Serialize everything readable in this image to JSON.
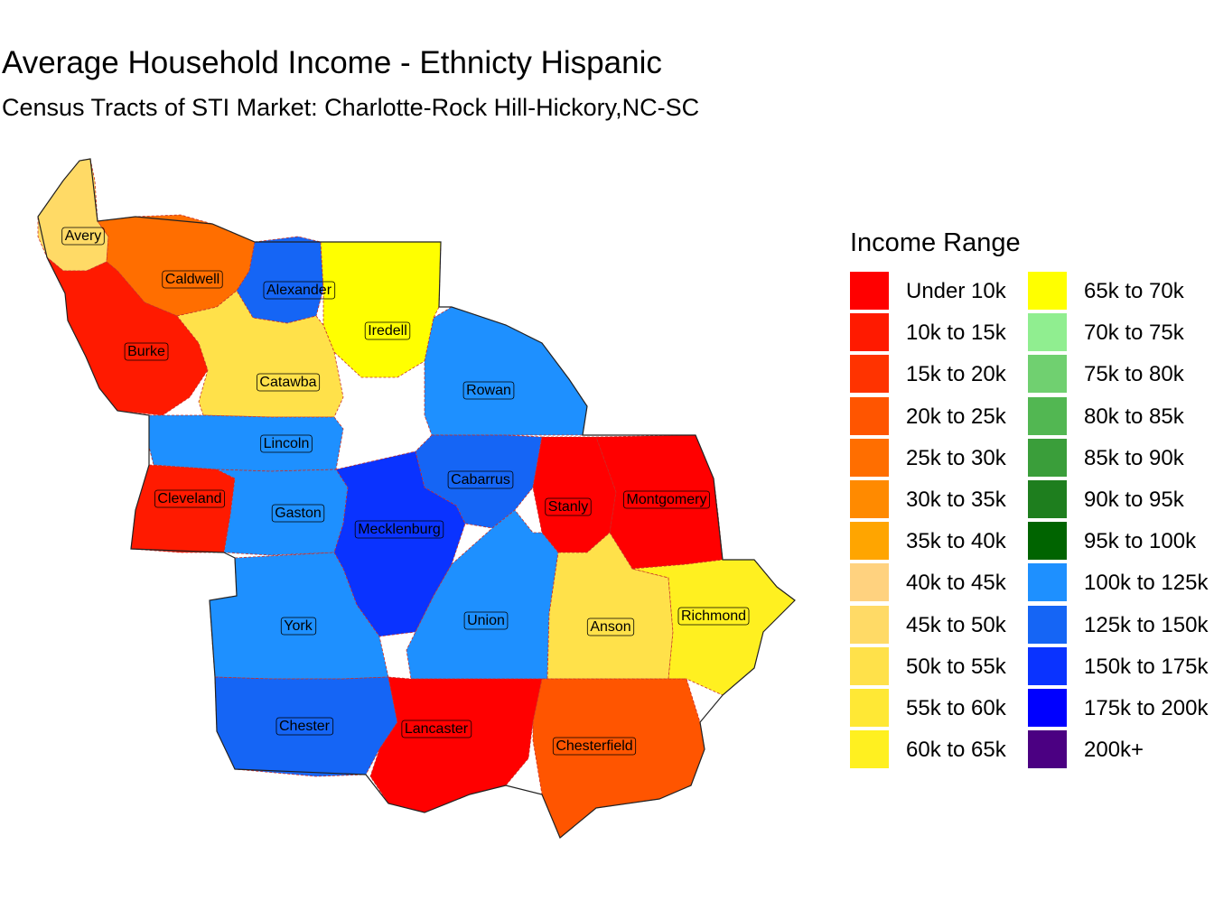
{
  "title": "Average Household Income - Ethnicty Hispanic",
  "subtitle": "Census Tracts of STI Market: Charlotte-Rock Hill-Hickory,NC-SC",
  "legend": {
    "title": "Income Range",
    "items": [
      {
        "label": "Under 10k",
        "color": "#FF0000"
      },
      {
        "label": "10k to 15k",
        "color": "#FF1A00"
      },
      {
        "label": "15k to 20k",
        "color": "#FF3300"
      },
      {
        "label": "20k to 25k",
        "color": "#FF5500"
      },
      {
        "label": "25k to 30k",
        "color": "#FF6E00"
      },
      {
        "label": "30k to 35k",
        "color": "#FF8A00"
      },
      {
        "label": "35k to 40k",
        "color": "#FFA500"
      },
      {
        "label": "40k to 45k",
        "color": "#FFD27F"
      },
      {
        "label": "45k to 50k",
        "color": "#FFDA66"
      },
      {
        "label": "50k to 55k",
        "color": "#FFE14A"
      },
      {
        "label": "55k to 60k",
        "color": "#FFE835"
      },
      {
        "label": "60k to 65k",
        "color": "#FFF020"
      },
      {
        "label": "65k to 70k",
        "color": "#FFFF00"
      },
      {
        "label": "70k to 75k",
        "color": "#90EE90"
      },
      {
        "label": "75k to 80k",
        "color": "#70D070"
      },
      {
        "label": "80k to 85k",
        "color": "#52B752"
      },
      {
        "label": "85k to 90k",
        "color": "#3A9E3A"
      },
      {
        "label": "90k to 95k",
        "color": "#1E7E1E"
      },
      {
        "label": "95k to 100k",
        "color": "#006400"
      },
      {
        "label": "100k to 125k",
        "color": "#1E90FF"
      },
      {
        "label": "125k to 150k",
        "color": "#1565F5"
      },
      {
        "label": "150k to 175k",
        "color": "#0A33FF"
      },
      {
        "label": "175k to 200k",
        "color": "#0000FF"
      },
      {
        "label": "200k+",
        "color": "#4B0082"
      }
    ]
  },
  "counties": [
    {
      "name": "Avery",
      "color": "#FFDA66"
    },
    {
      "name": "Caldwell",
      "color": "#FF6E00"
    },
    {
      "name": "Alexander",
      "color": "#1565F5"
    },
    {
      "name": "Iredell",
      "color": "#FFFF00"
    },
    {
      "name": "Burke",
      "color": "#FF1A00"
    },
    {
      "name": "Catawba",
      "color": "#FFE14A"
    },
    {
      "name": "Rowan",
      "color": "#1E90FF"
    },
    {
      "name": "Lincoln",
      "color": "#1E90FF"
    },
    {
      "name": "Cabarrus",
      "color": "#1565F5"
    },
    {
      "name": "Cleveland",
      "color": "#FF1A00"
    },
    {
      "name": "Gaston",
      "color": "#1E90FF"
    },
    {
      "name": "Stanly",
      "color": "#FF0000"
    },
    {
      "name": "Montgomery",
      "color": "#FF0000"
    },
    {
      "name": "Mecklenburg",
      "color": "#0A33FF"
    },
    {
      "name": "York",
      "color": "#1E90FF"
    },
    {
      "name": "Union",
      "color": "#1E90FF"
    },
    {
      "name": "Anson",
      "color": "#FFE14A"
    },
    {
      "name": "Richmond",
      "color": "#FFF020"
    },
    {
      "name": "Chester",
      "color": "#1565F5"
    },
    {
      "name": "Lancaster",
      "color": "#FF0000"
    },
    {
      "name": "Chesterfield",
      "color": "#FF5500"
    }
  ]
}
